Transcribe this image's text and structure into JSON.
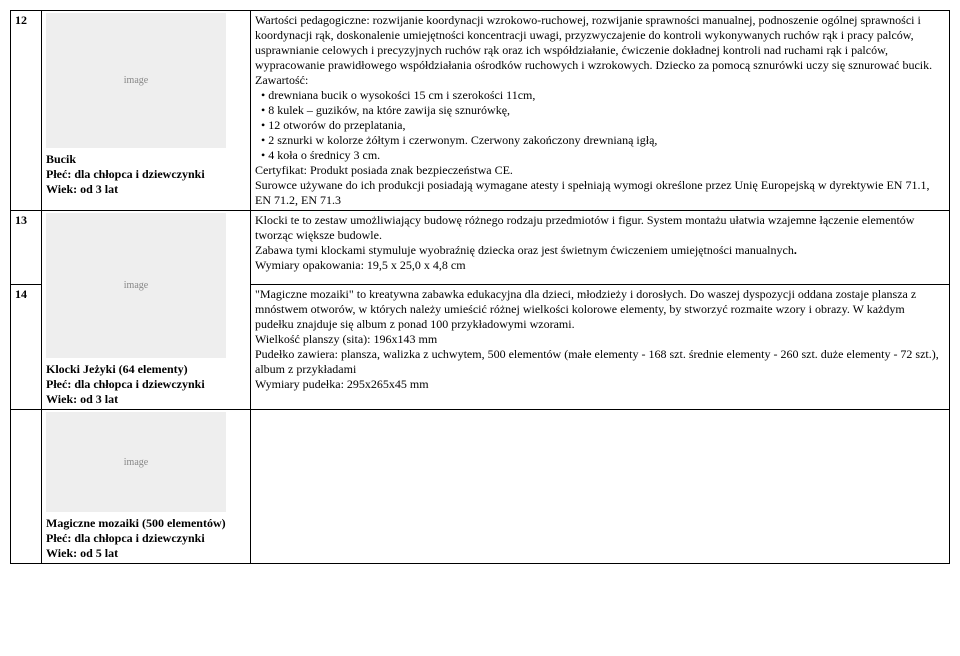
{
  "rows": {
    "r12": {
      "num": "12",
      "product_name": "Bucik",
      "product_gender": "Płeć: dla chłopca i dziewczynki",
      "product_age": "Wiek: od 3 lat",
      "desc_p1": "Wartości pedagogiczne: rozwijanie koordynacji wzrokowo-ruchowej, rozwijanie sprawności manualnej, podnoszenie ogólnej sprawności i koordynacji rąk, doskonalenie umiejętności koncentracji uwagi, przyzwyczajenie do kontroli wykonywanych ruchów rąk i pracy palców, usprawnianie celowych i precyzyjnych ruchów rąk oraz ich współdziałanie, ćwiczenie dokładnej kontroli nad ruchami rąk i palców, wypracowanie prawidłowego współdziałania ośrodków ruchowych i wzrokowych. Dziecko za pomocą sznurówki uczy się sznurować bucik.",
      "desc_contents_label": "Zawartość:",
      "bul1": "drewniana bucik o wysokości 15 cm i szerokości 11cm,",
      "bul2": "8 kulek – guzików, na które zawija się sznurówkę,",
      "bul3": "12 otworów do przeplatania,",
      "bul4": "2 sznurki w kolorze żółtym i czerwonym. Czerwony zakończony drewnianą igłą,",
      "bul5": "4 koła o średnicy 3 cm.",
      "cert": "Certyfikat: Produkt posiada znak bezpieczeństwa CE.",
      "surowce": "Surowce używane do ich produkcji posiadają wymagane atesty i spełniają wymogi określone przez Unię Europejską w dyrektywie EN 71.1, EN 71.2, EN 71.3"
    },
    "r13": {
      "num": "13",
      "product_name": "Klocki Jeżyki (64 elementy)",
      "product_gender": "Płeć: dla chłopca i dziewczynki",
      "product_age": "Wiek: od 3 lat",
      "desc_p1": "Klocki te to zestaw umożliwiający budowę różnego rodzaju przedmiotów i figur. System montażu ułatwia wzajemne łączenie elementów tworząc większe budowle.",
      "desc_p2a": "Zabawa tymi klockami stymuluje wyobraźnię dziecka oraz jest świetnym ćwiczeniem umiejętności manualnych",
      "desc_p2b": ".",
      "dims": "Wymiary opakowania: 19,5 x 25,0 x 4,8 cm"
    },
    "r14": {
      "num": "14",
      "product_name": "Magiczne mozaiki (500 elementów)",
      "product_gender": "Płeć: dla chłopca i dziewczynki",
      "product_age": "Wiek: od 5 lat",
      "desc_p1": "\"Magiczne mozaiki\" to kreatywna zabawka edukacyjna dla dzieci, młodzieży i dorosłych. Do waszej dyspozycji oddana zostaje plansza z mnóstwem otworów, w których należy umieścić różnej wielkości kolorowe elementy, by stworzyć rozmaite wzory i obrazy. W każdym pudełku znajduje się album z ponad 100 przykładowymi wzorami.",
      "size": "Wielkość planszy (sita): 196x143 mm",
      "box": "Pudełko zawiera: plansza, walizka z uchwytem, 500 elementów (małe elementy - 168 szt. średnie elementy - 260 szt. duże elementy - 72 szt.), album z przykładami",
      "dims": "Wymiary pudełka:  295x265x45 mm"
    }
  }
}
